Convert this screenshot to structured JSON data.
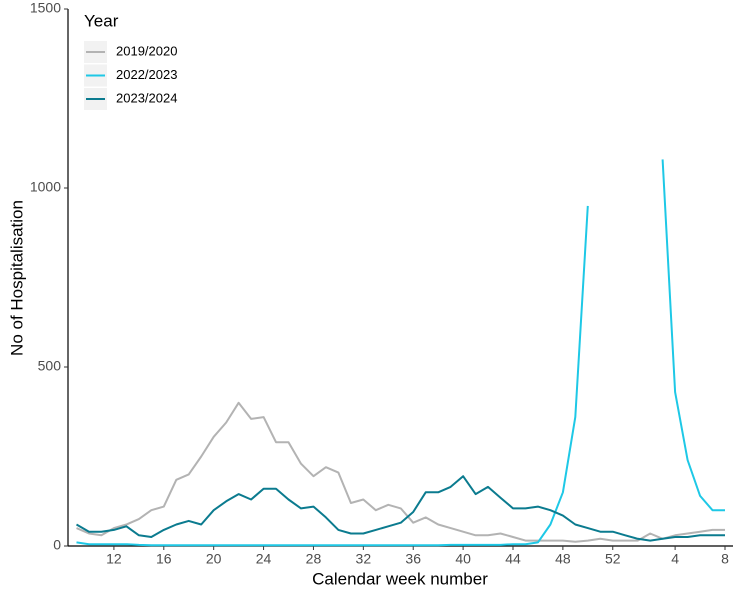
{
  "chart_data": {
    "type": "line",
    "xlabel": "Calendar week number",
    "ylabel": "No of Hospitalisation",
    "legend_title": "Year",
    "legend": "top-left",
    "grid": false,
    "categories": [
      null,
      null,
      null,
      12,
      null,
      null,
      null,
      16,
      null,
      null,
      null,
      20,
      null,
      null,
      null,
      24,
      null,
      null,
      null,
      28,
      null,
      null,
      null,
      32,
      null,
      null,
      null,
      36,
      null,
      null,
      null,
      40,
      null,
      null,
      null,
      44,
      null,
      null,
      null,
      48,
      null,
      null,
      null,
      52,
      null,
      null,
      null,
      null,
      4,
      null,
      null,
      null,
      8
    ],
    "ylim": [
      0,
      1500
    ],
    "yticks": [
      0,
      500,
      1000,
      1500
    ],
    "series": [
      {
        "name": "2019/2020",
        "color": "#b3b3b3",
        "values": [
          50,
          35,
          30,
          50,
          60,
          75,
          100,
          110,
          185,
          200,
          250,
          305,
          345,
          400,
          355,
          360,
          290,
          290,
          230,
          195,
          220,
          205,
          120,
          130,
          100,
          115,
          105,
          65,
          80,
          60,
          50,
          40,
          30,
          30,
          35,
          25,
          15,
          15,
          15,
          15,
          12,
          15,
          20,
          15,
          15,
          15,
          35,
          20,
          30,
          35,
          40,
          45,
          45
        ]
      },
      {
        "name": "2022/2023",
        "color": "#1ec8e6",
        "values": [
          10,
          5,
          5,
          5,
          5,
          3,
          2,
          2,
          2,
          2,
          2,
          2,
          2,
          2,
          2,
          2,
          2,
          2,
          2,
          2,
          2,
          2,
          2,
          2,
          2,
          2,
          2,
          2,
          2,
          2,
          3,
          3,
          3,
          3,
          3,
          5,
          5,
          10,
          60,
          150,
          360,
          950,
          null,
          null,
          null,
          null,
          null,
          1080,
          430,
          240,
          140,
          100,
          100
        ]
      },
      {
        "name": "2023/2024",
        "color": "#0b7b8f",
        "values": [
          60,
          40,
          40,
          45,
          55,
          30,
          25,
          45,
          60,
          70,
          60,
          100,
          125,
          145,
          130,
          160,
          160,
          130,
          105,
          110,
          80,
          45,
          35,
          35,
          45,
          55,
          65,
          95,
          150,
          150,
          165,
          195,
          145,
          165,
          135,
          105,
          105,
          110,
          100,
          85,
          60,
          50,
          40,
          40,
          30,
          20,
          15,
          20,
          25,
          25,
          30,
          30,
          30
        ]
      }
    ]
  }
}
